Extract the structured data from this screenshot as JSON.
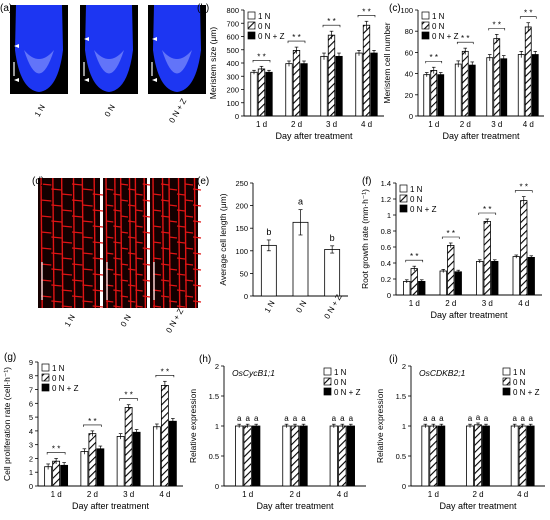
{
  "figure": {
    "panel_letters": [
      "(a)",
      "(b)",
      "(c)",
      "(d)",
      "(e)",
      "(f)",
      "(g)",
      "(h)",
      "(i)"
    ],
    "treatments": [
      "1 N",
      "0 N",
      "0 N + Z"
    ],
    "image_colors": {
      "nuclei_stain": "#1f39ff",
      "cell_wall_stain": "#e01414"
    }
  },
  "chart_data": [
    {
      "panel": "(b)",
      "type": "bar",
      "categories": [
        "1 d",
        "2 d",
        "3 d",
        "4 d"
      ],
      "series": [
        {
          "name": "1 N",
          "values": [
            330,
            395,
            450,
            475
          ],
          "errors": [
            15,
            20,
            25,
            20
          ]
        },
        {
          "name": "0 N",
          "values": [
            355,
            495,
            610,
            685
          ],
          "errors": [
            20,
            25,
            30,
            30
          ]
        },
        {
          "name": "0 N + Z",
          "values": [
            330,
            395,
            450,
            475
          ],
          "errors": [
            15,
            20,
            25,
            20
          ]
        }
      ],
      "ylabel": "Meristem size (μm)",
      "xlabel": "Day after treatment",
      "ylim": [
        0,
        800
      ],
      "yticks": [
        "0",
        "100",
        "200",
        "300",
        "400",
        "500",
        "600",
        "700",
        "800"
      ],
      "significance": [
        "* *",
        "* *",
        "* *",
        "* *"
      ],
      "legend_position": "top-left"
    },
    {
      "panel": "(c)",
      "type": "bar",
      "categories": [
        "1 d",
        "2 d",
        "3 d",
        "4 d"
      ],
      "series": [
        {
          "name": "1 N",
          "values": [
            39,
            49,
            55,
            58
          ],
          "errors": [
            2,
            3,
            3,
            3
          ]
        },
        {
          "name": "0 N",
          "values": [
            43,
            61,
            73,
            84
          ],
          "errors": [
            3,
            3,
            4,
            4
          ]
        },
        {
          "name": "0 N + Z",
          "values": [
            39,
            48,
            54,
            58
          ],
          "errors": [
            2,
            3,
            3,
            3
          ]
        }
      ],
      "ylabel": "Meristem cell number",
      "xlabel": "Day after treatment",
      "ylim": [
        0,
        100
      ],
      "yticks": [
        "0",
        "20",
        "40",
        "60",
        "80",
        "100"
      ],
      "significance": [
        "* *",
        "* *",
        "* *",
        "* *"
      ],
      "legend_position": "top-left"
    },
    {
      "panel": "(e)",
      "type": "bar",
      "categories": [
        "1 N",
        "0 N",
        "0 N + Z"
      ],
      "values": [
        112,
        163,
        103
      ],
      "errors": [
        12,
        28,
        8
      ],
      "letters": [
        "b",
        "a",
        "b"
      ],
      "ylabel": "Average cell length (μm)",
      "xlabel": "",
      "ylim": [
        0,
        250
      ],
      "yticks": [
        "0",
        "50",
        "100",
        "150",
        "200",
        "250"
      ]
    },
    {
      "panel": "(f)",
      "type": "bar",
      "categories": [
        "1 d",
        "2 d",
        "3 d",
        "4 d"
      ],
      "series": [
        {
          "name": "1 N",
          "values": [
            0.17,
            0.3,
            0.42,
            0.48
          ],
          "errors": [
            0.02,
            0.02,
            0.02,
            0.02
          ]
        },
        {
          "name": "0 N",
          "values": [
            0.33,
            0.62,
            0.92,
            1.18
          ],
          "errors": [
            0.03,
            0.03,
            0.03,
            0.05
          ]
        },
        {
          "name": "0 N + Z",
          "values": [
            0.17,
            0.29,
            0.42,
            0.47
          ],
          "errors": [
            0.02,
            0.02,
            0.02,
            0.02
          ]
        }
      ],
      "ylabel": "Root growth rate (mm·h⁻¹)",
      "xlabel": "Day after treatment",
      "ylim": [
        0,
        1.4
      ],
      "yticks": [
        "0",
        "0.2",
        "0.4",
        "0.6",
        "0.8",
        "1",
        "1.2",
        "1.4"
      ],
      "significance": [
        "* *",
        "* *",
        "* *",
        "* *"
      ],
      "legend_position": "top-left"
    },
    {
      "panel": "(g)",
      "type": "bar",
      "categories": [
        "1 d",
        "2 d",
        "3 d",
        "4 d"
      ],
      "series": [
        {
          "name": "1 N",
          "values": [
            1.4,
            2.5,
            3.6,
            4.3
          ],
          "errors": [
            0.2,
            0.2,
            0.2,
            0.2
          ]
        },
        {
          "name": "0 N",
          "values": [
            1.8,
            3.8,
            5.7,
            7.3
          ],
          "errors": [
            0.2,
            0.2,
            0.2,
            0.3
          ]
        },
        {
          "name": "0 N + Z",
          "values": [
            1.5,
            2.7,
            3.9,
            4.7
          ],
          "errors": [
            0.2,
            0.2,
            0.2,
            0.2
          ]
        }
      ],
      "ylabel": "Cell proliferation rate (cell·h⁻¹)",
      "xlabel": "Day after treatment",
      "ylim": [
        0,
        9
      ],
      "yticks": [
        "0",
        "1",
        "2",
        "3",
        "4",
        "5",
        "6",
        "7",
        "8",
        "9"
      ],
      "significance": [
        "* *",
        "* *",
        "* *",
        "* *"
      ],
      "legend_position": "top-left"
    },
    {
      "panel": "(h)",
      "type": "bar",
      "title": "OsCycB1;1",
      "categories": [
        "1 d",
        "2 d",
        "4 d"
      ],
      "series": [
        {
          "name": "1 N",
          "values": [
            1.0,
            1.0,
            1.0
          ],
          "errors": [
            0.03,
            0.03,
            0.03
          ]
        },
        {
          "name": "0 N",
          "values": [
            1.0,
            1.0,
            1.0
          ],
          "errors": [
            0.03,
            0.03,
            0.03
          ]
        },
        {
          "name": "0 N + Z",
          "values": [
            1.0,
            1.0,
            1.0
          ],
          "errors": [
            0.03,
            0.03,
            0.03
          ]
        }
      ],
      "letters": [
        [
          "a",
          "a",
          "a"
        ],
        [
          "a",
          "a",
          "a"
        ],
        [
          "a",
          "a",
          "a"
        ]
      ],
      "ylabel": "Relative expression",
      "xlabel": "Day after treatment",
      "ylim": [
        0,
        2
      ],
      "yticks": [
        "0",
        "0.5",
        "1",
        "1.5",
        "2"
      ],
      "legend_position": "top-right"
    },
    {
      "panel": "(i)",
      "type": "bar",
      "title": "OsCDKB2;1",
      "categories": [
        "1 d",
        "2 d",
        "4 d"
      ],
      "series": [
        {
          "name": "1 N",
          "values": [
            1.0,
            1.0,
            1.0
          ],
          "errors": [
            0.03,
            0.03,
            0.03
          ]
        },
        {
          "name": "0 N",
          "values": [
            1.0,
            1.02,
            1.0
          ],
          "errors": [
            0.03,
            0.03,
            0.03
          ]
        },
        {
          "name": "0 N + Z",
          "values": [
            1.0,
            1.0,
            1.0
          ],
          "errors": [
            0.03,
            0.03,
            0.03
          ]
        }
      ],
      "letters": [
        [
          "a",
          "a",
          "a"
        ],
        [
          "a",
          "a",
          "a"
        ],
        [
          "a",
          "a",
          "a"
        ]
      ],
      "ylabel": "Relative expression",
      "xlabel": "Day after treatment",
      "ylim": [
        0,
        2
      ],
      "yticks": [
        "0",
        "0.5",
        "1",
        "1.5",
        "2"
      ],
      "legend_position": "top-right"
    }
  ]
}
